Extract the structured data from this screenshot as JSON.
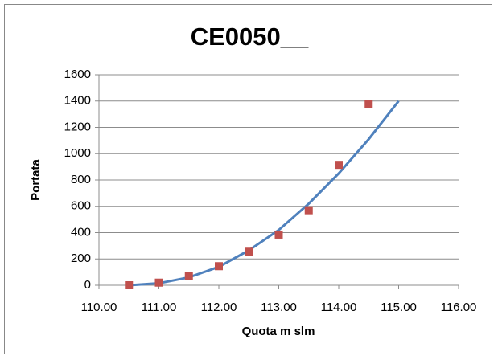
{
  "chart_data": {
    "type": "scatter",
    "title": "CE0050__",
    "xlabel": "Quota m slm",
    "ylabel": "Portata",
    "xlim": [
      110,
      116
    ],
    "xticks": [
      {
        "value": 110,
        "label": "110.00"
      },
      {
        "value": 111,
        "label": "111.00"
      },
      {
        "value": 112,
        "label": "112.00"
      },
      {
        "value": 113,
        "label": "113.00"
      },
      {
        "value": 114,
        "label": "114.00"
      },
      {
        "value": 115,
        "label": "115.00"
      },
      {
        "value": 116,
        "label": "116.00"
      }
    ],
    "ylim": [
      0,
      1600
    ],
    "yticks": [
      0,
      200,
      400,
      600,
      800,
      1000,
      1200,
      1400,
      1600
    ],
    "grid": true,
    "series": [
      {
        "mode": "markers",
        "color": "#c0504d",
        "x": [
          110.5,
          111,
          111.5,
          112,
          112.5,
          113,
          113.5,
          114,
          114.5
        ],
        "values": [
          0,
          20,
          70,
          145,
          255,
          385,
          570,
          915,
          1375
        ]
      },
      {
        "mode": "line",
        "color": "#4f81bd",
        "x": [
          110.5,
          111,
          111.5,
          112,
          112.5,
          113,
          113.5,
          114,
          114.5,
          115
        ],
        "values": [
          0,
          15,
          60,
          140,
          265,
          420,
          620,
          850,
          1110,
          1400
        ]
      }
    ]
  }
}
